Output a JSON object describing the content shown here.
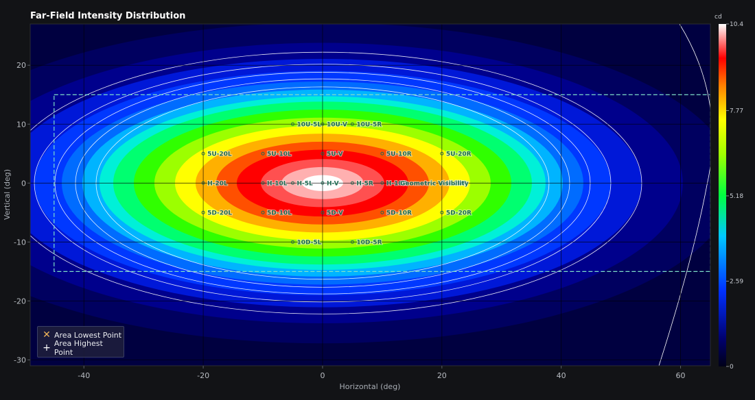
{
  "chart_data": {
    "type": "heatmap",
    "title": "Far-Field Intensity Distribution",
    "xlabel": "Horizontal (deg)",
    "ylabel": "Vertical (deg)",
    "xlim": [
      -49,
      65
    ],
    "ylim": [
      -31,
      27
    ],
    "x_ticks": [
      -40,
      -20,
      0,
      20,
      40,
      60
    ],
    "y_ticks": [
      -30,
      -20,
      -10,
      0,
      10,
      20
    ],
    "colorbar": {
      "unit": "cd",
      "range": [
        0,
        10.4
      ],
      "ticks": [
        "0",
        "2.59",
        "5.18",
        "7.77",
        "10.4"
      ],
      "tick_values": [
        0,
        2.59,
        5.18,
        7.77,
        10.4
      ]
    },
    "peak": {
      "x": 0,
      "y": 0,
      "value": 10.4
    },
    "geometric_visibility_area": {
      "label": "Geometric Visibility",
      "x": [
        -45,
        65
      ],
      "y": [
        -15,
        15
      ]
    },
    "test_points": [
      {
        "label": "10U-5L",
        "x": -5,
        "y": 10
      },
      {
        "label": "10U-V",
        "x": 0,
        "y": 10
      },
      {
        "label": "10U-5R",
        "x": 5,
        "y": 10
      },
      {
        "label": "5U-20L",
        "x": -20,
        "y": 5
      },
      {
        "label": "5U-10L",
        "x": -10,
        "y": 5
      },
      {
        "label": "5U-V",
        "x": 0,
        "y": 5
      },
      {
        "label": "5U-10R",
        "x": 10,
        "y": 5
      },
      {
        "label": "5U-20R",
        "x": 20,
        "y": 5
      },
      {
        "label": "H-20L",
        "x": -20,
        "y": 0
      },
      {
        "label": "H-10L",
        "x": -10,
        "y": 0
      },
      {
        "label": "H-5L",
        "x": -5,
        "y": 0
      },
      {
        "label": "H-V",
        "x": 0,
        "y": 0
      },
      {
        "label": "H-5R",
        "x": 5,
        "y": 0
      },
      {
        "label": "H-10R",
        "x": 10,
        "y": 0
      },
      {
        "label": "H-20R",
        "x": 20,
        "y": 0
      },
      {
        "label": "5D-20L",
        "x": -20,
        "y": -5
      },
      {
        "label": "5D-10L",
        "x": -10,
        "y": -5
      },
      {
        "label": "5D-V",
        "x": 0,
        "y": -5
      },
      {
        "label": "5D-10R",
        "x": 10,
        "y": -5
      },
      {
        "label": "5D-20R",
        "x": 20,
        "y": -5
      },
      {
        "label": "10D-5L",
        "x": -5,
        "y": -10
      },
      {
        "label": "10D-5R",
        "x": 5,
        "y": -10
      }
    ],
    "legend": {
      "placement": "bottom-left",
      "items": [
        {
          "label": "Area Lowest Point",
          "symbol": "x-icon",
          "color": "#f0b45a"
        },
        {
          "label": "Area Highest Point",
          "symbol": "plus-icon",
          "color": "#ffffff"
        }
      ]
    },
    "grid": true
  },
  "colors": {
    "background": "#121316",
    "grid": "#000000",
    "contour": "#ffffff",
    "area_outline": "#7fe0c8",
    "point_label": "#1d6b52"
  }
}
